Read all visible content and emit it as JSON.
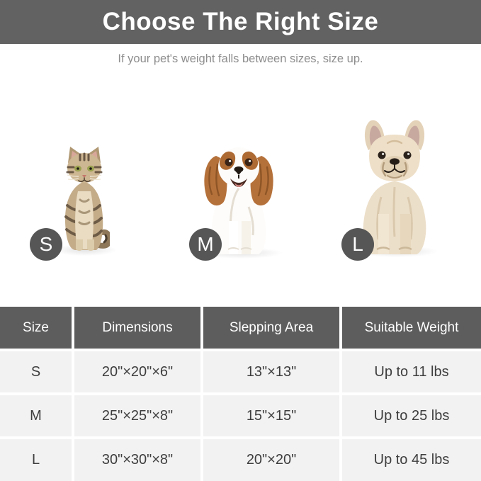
{
  "header": {
    "title": "Choose The Right Size",
    "subtitle": "If your pet's weight falls between sizes, size up."
  },
  "size_badges": [
    {
      "label": "S",
      "animal": "tabby-cat"
    },
    {
      "label": "M",
      "animal": "cavalier-spaniel"
    },
    {
      "label": "L",
      "animal": "french-bulldog"
    }
  ],
  "chart_data": {
    "type": "table",
    "columns": [
      "Size",
      "Dimensions",
      "Slepping Area",
      "Suitable Weight"
    ],
    "rows": [
      [
        "S",
        "20\"×20\"×6\"",
        "13\"×13\"",
        "Up to 11 lbs"
      ],
      [
        "M",
        "25\"×25\"×8\"",
        "15\"×15\"",
        "Up to 25 lbs"
      ],
      [
        "L",
        "30\"×30\"×8\"",
        "20\"×20\"",
        "Up to 45 lbs"
      ]
    ]
  },
  "colors": {
    "title_band_bg": "#626262",
    "table_header_bg": "#5d5d5d",
    "badge_bg": "#565656",
    "row_bg": "#f2f2f2",
    "subtitle_text": "#8d8d8d",
    "cell_text": "#3e3e3e"
  }
}
